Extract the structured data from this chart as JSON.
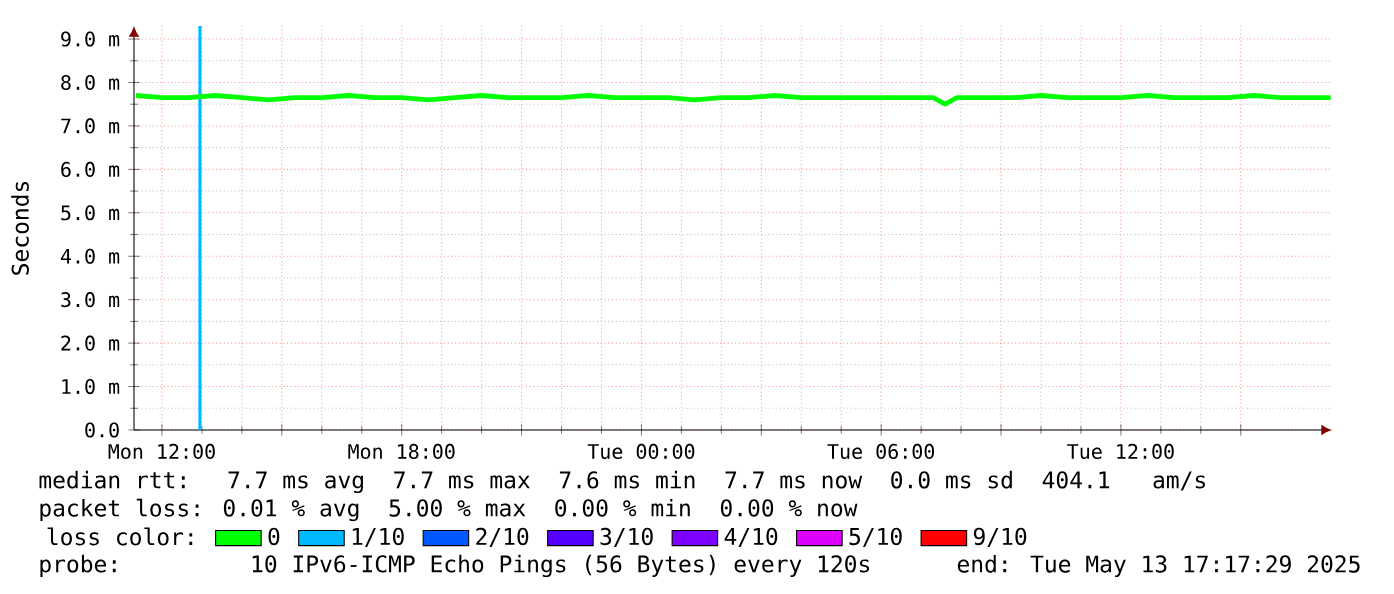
{
  "chart_data": {
    "type": "line",
    "ylabel": "Seconds",
    "legend_title": "loss color:",
    "xlim": [
      "2025-05-12T11:18",
      "2025-05-13T17:17"
    ],
    "ylim": [
      0,
      9.3
    ],
    "xticks": [
      {
        "value": "2025-05-12T12:00",
        "label": "Mon 12:00"
      },
      {
        "value": "2025-05-12T15:00",
        "label": null
      },
      {
        "value": "2025-05-12T18:00",
        "label": "Mon 18:00"
      },
      {
        "value": "2025-05-12T21:00",
        "label": null
      },
      {
        "value": "2025-05-13T00:00",
        "label": "Tue 00:00"
      },
      {
        "value": "2025-05-13T03:00",
        "label": null
      },
      {
        "value": "2025-05-13T06:00",
        "label": "Tue 06:00"
      },
      {
        "value": "2025-05-13T09:00",
        "label": null
      },
      {
        "value": "2025-05-13T12:00",
        "label": "Tue 12:00"
      },
      {
        "value": "2025-05-13T15:00",
        "label": null
      }
    ],
    "yticks": [
      {
        "value": 0,
        "label": "0.0"
      },
      {
        "value": 1,
        "label": "1.0 m"
      },
      {
        "value": 2,
        "label": "2.0 m"
      },
      {
        "value": 3,
        "label": "3.0 m"
      },
      {
        "value": 4,
        "label": "4.0 m"
      },
      {
        "value": 5,
        "label": "5.0 m"
      },
      {
        "value": 6,
        "label": "6.0 m"
      },
      {
        "value": 7,
        "label": "7.0 m"
      },
      {
        "value": 8,
        "label": "8.0 m"
      },
      {
        "value": 9,
        "label": "9.0 m"
      }
    ],
    "x": [
      "2025-05-12T11:21",
      "2025-05-12T12:00",
      "2025-05-12T12:40",
      "2025-05-12T13:20",
      "2025-05-12T14:00",
      "2025-05-12T14:40",
      "2025-05-12T15:20",
      "2025-05-12T16:00",
      "2025-05-12T16:40",
      "2025-05-12T17:20",
      "2025-05-12T18:00",
      "2025-05-12T18:40",
      "2025-05-12T19:20",
      "2025-05-12T20:00",
      "2025-05-12T20:40",
      "2025-05-12T21:20",
      "2025-05-12T22:00",
      "2025-05-12T22:40",
      "2025-05-12T23:20",
      "2025-05-13T00:00",
      "2025-05-13T00:40",
      "2025-05-13T01:20",
      "2025-05-13T02:00",
      "2025-05-13T02:40",
      "2025-05-13T03:20",
      "2025-05-13T04:00",
      "2025-05-13T04:40",
      "2025-05-13T05:20",
      "2025-05-13T06:00",
      "2025-05-13T06:40",
      "2025-05-13T07:18",
      "2025-05-13T07:36",
      "2025-05-13T07:54",
      "2025-05-13T08:40",
      "2025-05-13T09:20",
      "2025-05-13T10:00",
      "2025-05-13T10:40",
      "2025-05-13T11:20",
      "2025-05-13T12:00",
      "2025-05-13T12:40",
      "2025-05-13T13:20",
      "2025-05-13T14:00",
      "2025-05-13T14:40",
      "2025-05-13T15:20",
      "2025-05-13T16:00",
      "2025-05-13T16:40",
      "2025-05-13T17:15"
    ],
    "series": [
      {
        "name": "0",
        "color": "#00ff00",
        "values": [
          7.7,
          7.65,
          7.65,
          7.7,
          7.65,
          7.6,
          7.65,
          7.65,
          7.7,
          7.65,
          7.65,
          7.6,
          7.65,
          7.7,
          7.65,
          7.65,
          7.65,
          7.7,
          7.65,
          7.65,
          7.65,
          7.6,
          7.65,
          7.65,
          7.7,
          7.65,
          7.65,
          7.65,
          7.65,
          7.65,
          7.65,
          7.5,
          7.65,
          7.65,
          7.65,
          7.7,
          7.65,
          7.65,
          7.65,
          7.7,
          7.65,
          7.65,
          7.65,
          7.7,
          7.65,
          7.65,
          7.65
        ]
      },
      {
        "name": "1/10",
        "color": "#00b8ff",
        "values": [
          null,
          null,
          null,
          null,
          null,
          null,
          null,
          null,
          null,
          null,
          null,
          null,
          null,
          null,
          null,
          null,
          null,
          null,
          null,
          null,
          null,
          null,
          null,
          null,
          null,
          null,
          null,
          null,
          null,
          null,
          null,
          null,
          null,
          null,
          null,
          null,
          null,
          null,
          null,
          null,
          null,
          null,
          null,
          null,
          null,
          null,
          null
        ]
      },
      {
        "name": "2/10",
        "color": "#0059ff",
        "values": [
          null,
          null,
          null,
          null,
          null,
          null,
          null,
          null,
          null,
          null,
          null,
          null,
          null,
          null,
          null,
          null,
          null,
          null,
          null,
          null,
          null,
          null,
          null,
          null,
          null,
          null,
          null,
          null,
          null,
          null,
          null,
          null,
          null,
          null,
          null,
          null,
          null,
          null,
          null,
          null,
          null,
          null,
          null,
          null,
          null,
          null,
          null
        ]
      },
      {
        "name": "3/10",
        "color": "#5500ff",
        "values": [
          null,
          null,
          null,
          null,
          null,
          null,
          null,
          null,
          null,
          null,
          null,
          null,
          null,
          null,
          null,
          null,
          null,
          null,
          null,
          null,
          null,
          null,
          null,
          null,
          null,
          null,
          null,
          null,
          null,
          null,
          null,
          null,
          null,
          null,
          null,
          null,
          null,
          null,
          null,
          null,
          null,
          null,
          null,
          null,
          null,
          null,
          null
        ]
      },
      {
        "name": "4/10",
        "color": "#7e00ff",
        "values": [
          null,
          null,
          null,
          null,
          null,
          null,
          null,
          null,
          null,
          null,
          null,
          null,
          null,
          null,
          null,
          null,
          null,
          null,
          null,
          null,
          null,
          null,
          null,
          null,
          null,
          null,
          null,
          null,
          null,
          null,
          null,
          null,
          null,
          null,
          null,
          null,
          null,
          null,
          null,
          null,
          null,
          null,
          null,
          null,
          null,
          null,
          null
        ]
      },
      {
        "name": "5/10",
        "color": "#dd00ff",
        "values": [
          null,
          null,
          null,
          null,
          null,
          null,
          null,
          null,
          null,
          null,
          null,
          null,
          null,
          null,
          null,
          null,
          null,
          null,
          null,
          null,
          null,
          null,
          null,
          null,
          null,
          null,
          null,
          null,
          null,
          null,
          null,
          null,
          null,
          null,
          null,
          null,
          null,
          null,
          null,
          null,
          null,
          null,
          null,
          null,
          null,
          null,
          null
        ]
      },
      {
        "name": "9/10",
        "color": "#ff0000",
        "values": [
          null,
          null,
          null,
          null,
          null,
          null,
          null,
          null,
          null,
          null,
          null,
          null,
          null,
          null,
          null,
          null,
          null,
          null,
          null,
          null,
          null,
          null,
          null,
          null,
          null,
          null,
          null,
          null,
          null,
          null,
          null,
          null,
          null,
          null,
          null,
          null,
          null,
          null,
          null,
          null,
          null,
          null,
          null,
          null,
          null,
          null,
          null
        ]
      }
    ],
    "ref_lines": [
      {
        "axis": "x",
        "value": "2025-05-12T12:57",
        "color": "#00b8ff"
      }
    ],
    "grid": true,
    "legend": "bottom",
    "marker": "none",
    "line_style": "solid",
    "annotations": [
      "median rtt:  7.7 ms avg  7.7 ms max  7.6 ms min  7.7 ms now  0.0 ms sd  404.1   am/s",
      "packet loss: 0.01 % avg  5.00 % max  0.00 % min  0.00 % now",
      "probe:       10 IPv6-ICMP Echo Pings (56 Bytes) every 120s",
      "end: Tue May 13 17:17:29 2025"
    ]
  }
}
